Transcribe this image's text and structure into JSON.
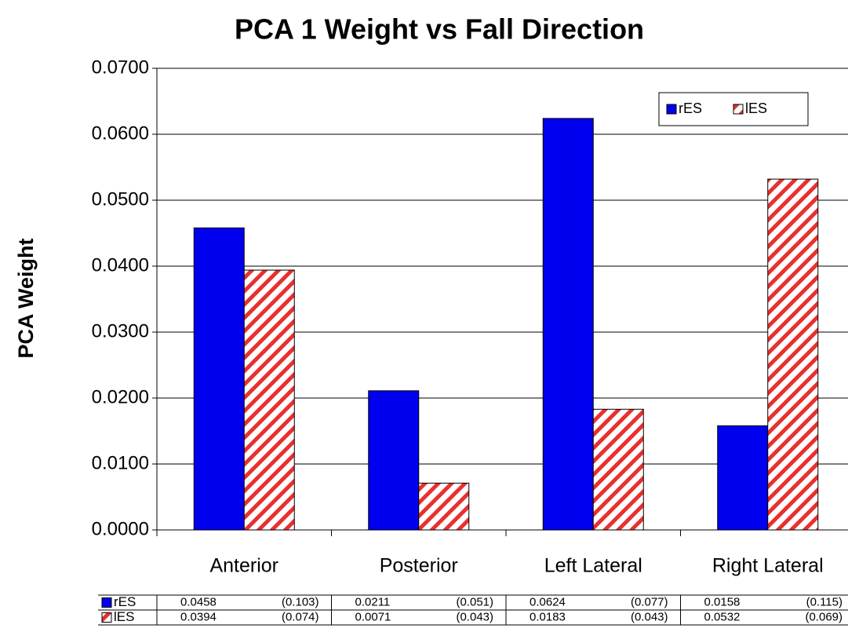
{
  "chart_data": {
    "type": "bar",
    "title": "PCA 1 Weight vs Fall Direction",
    "y_label": "PCA Weight",
    "categories": [
      "Anterior",
      "Posterior",
      "Left Lateral",
      "Right Lateral"
    ],
    "series": [
      {
        "name": "rES",
        "color": "#0000ee",
        "hatch": false,
        "values": [
          0.0458,
          0.0211,
          0.0624,
          0.0158
        ],
        "sd": [
          "(0.103)",
          "(0.051)",
          "(0.077)",
          "(0.115)"
        ]
      },
      {
        "name": "lES",
        "color": "#e83030",
        "hatch": true,
        "values": [
          0.0394,
          0.0071,
          0.0183,
          0.0532
        ],
        "sd": [
          "(0.074)",
          "(0.043)",
          "(0.043)",
          "(0.069)"
        ]
      }
    ],
    "ylim": [
      0,
      0.07
    ],
    "yticks": [
      {
        "value": 0,
        "label": "0.0000"
      },
      {
        "value": 0.01,
        "label": "0.0100"
      },
      {
        "value": 0.02,
        "label": "0.0200"
      },
      {
        "value": 0.03,
        "label": "0.0300"
      },
      {
        "value": 0.04,
        "label": "0.0400"
      },
      {
        "value": 0.05,
        "label": "0.0500"
      },
      {
        "value": 0.06,
        "label": "0.0600"
      },
      {
        "value": 0.07,
        "label": "0.0700"
      }
    ],
    "grid": true,
    "legend": "upper right",
    "data_table": true
  }
}
